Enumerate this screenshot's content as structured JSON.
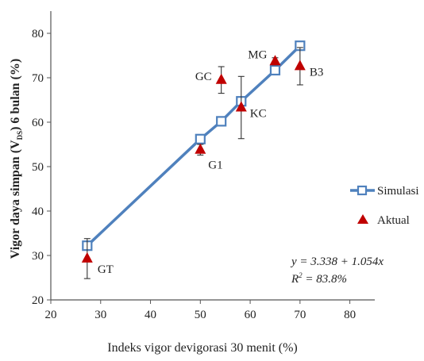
{
  "chart_data": {
    "type": "scatter",
    "xlabel": "Indeks vigor devigorasi 30 menit (%)",
    "ylabel_prefix": "Vigor daya simpan (V",
    "ylabel_sub": "DS",
    "ylabel_suffix": ") 6 bulan (%)",
    "xlim": [
      20,
      85
    ],
    "ylim": [
      20,
      85
    ],
    "xticks": [
      "20",
      "30",
      "40",
      "50",
      "60",
      "70",
      "80"
    ],
    "yticks": [
      "20",
      "30",
      "40",
      "50",
      "60",
      "70",
      "80"
    ],
    "grid": false,
    "legend_position": "right",
    "series": [
      {
        "name": "Simulasi",
        "type": "line-markers",
        "color": "#4f81bd",
        "marker": "square",
        "points": [
          {
            "x": 27.3,
            "y": 32.2
          },
          {
            "x": 50,
            "y": 56.2
          },
          {
            "x": 54.2,
            "y": 60.2
          },
          {
            "x": 58.2,
            "y": 64.7
          },
          {
            "x": 65,
            "y": 71.7
          },
          {
            "x": 70,
            "y": 77.2
          }
        ]
      },
      {
        "name": "Aktual",
        "type": "scatter",
        "color": "#c00000",
        "marker": "triangle",
        "points": [
          {
            "x": 27.3,
            "y": 29.3,
            "err": 4.5,
            "label": "GT"
          },
          {
            "x": 50,
            "y": 53.8,
            "err": 1.2,
            "label": "G1"
          },
          {
            "x": 54.2,
            "y": 69.5,
            "err": 3.0,
            "label": "GC"
          },
          {
            "x": 58.2,
            "y": 63.3,
            "err": 7.0,
            "label": "KC"
          },
          {
            "x": 65,
            "y": 73.7,
            "err": 0.8,
            "label": "MG"
          },
          {
            "x": 70,
            "y": 72.6,
            "err": 4.2,
            "label": "B3"
          }
        ]
      }
    ],
    "equation": "y  = 3.338 + 1.054x",
    "r2_prefix": "R",
    "r2_sup": "2",
    "r2_rest": " = 83.8%"
  }
}
